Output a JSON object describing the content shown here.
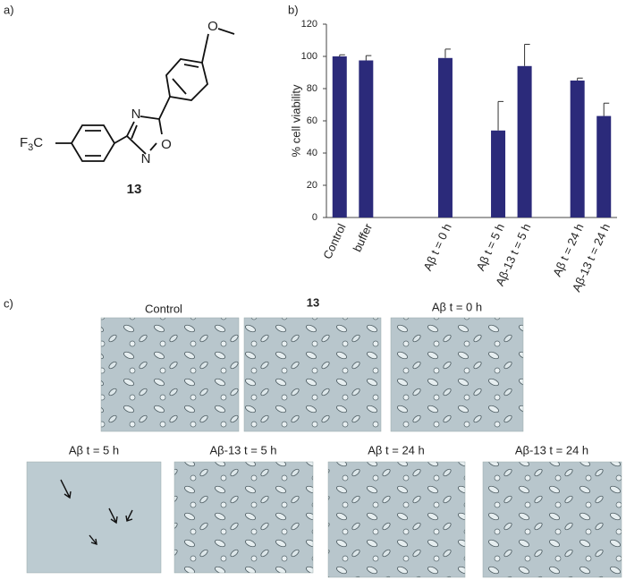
{
  "panels": {
    "a": "a)",
    "b": "b)",
    "c": "c)"
  },
  "molecule": {
    "atoms": [
      "O",
      "N",
      "N",
      "O"
    ],
    "cf3": {
      "f": "F",
      "sub": "3",
      "c": "C"
    },
    "label": "13"
  },
  "micrographs": [
    "Control",
    "13",
    "Aβ t = 0 h",
    "Aβ t = 5 h",
    "Aβ-13 t = 5 h",
    "Aβ t = 24 h",
    "Aβ-13 t = 24 h"
  ],
  "chart_data": {
    "type": "bar",
    "y_label": "% cell viability",
    "categories": [
      "Control",
      "buffer",
      null,
      null,
      "Aβ t = 0 h",
      null,
      "Aβ t = 5 h",
      "Aβ-13 t = 5 h",
      null,
      "Aβ t = 24 h",
      "Aβ-13 t = 24 h"
    ],
    "values": [
      100,
      97.5,
      null,
      null,
      99,
      null,
      54,
      94,
      null,
      85,
      63
    ],
    "errors": [
      1,
      3,
      null,
      null,
      5.5,
      null,
      18,
      13.5,
      null,
      1.5,
      8
    ],
    "color": "#2b2a7a",
    "ylim": [
      0,
      120
    ],
    "yticks": [
      0,
      20,
      40,
      60,
      80,
      100,
      120
    ]
  }
}
